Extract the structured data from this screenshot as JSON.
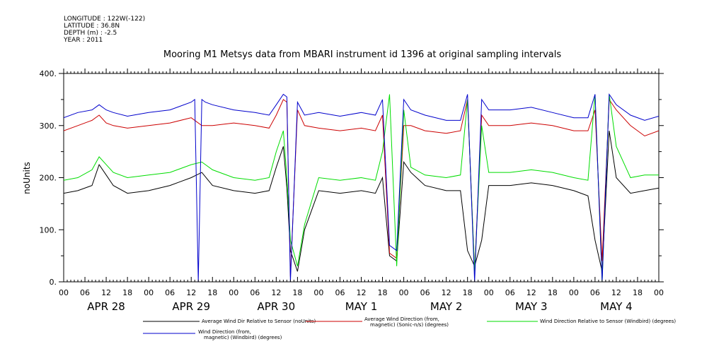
{
  "meta": {
    "lines": [
      "LONGITUDE : 122W(-122)",
      "LATITUDE : 36.8N",
      "DEPTH (m) : -2.5",
      "YEAR : 2011"
    ]
  },
  "chart_data": {
    "type": "line",
    "title": "Mooring M1 Metsys data from MBARI instrument id 1396 at original sampling intervals",
    "ylabel": "noUnits",
    "xlabel": "",
    "ylim": [
      0,
      400
    ],
    "y_ticks": [
      "0.",
      "100.",
      "200.",
      "300.",
      "400."
    ],
    "x_range_hours": [
      0,
      168
    ],
    "x_tick_labels": [
      "00",
      "06",
      "12",
      "18",
      "00",
      "06",
      "12",
      "18",
      "00",
      "06",
      "12",
      "18",
      "00",
      "06",
      "12",
      "18",
      "00",
      "06",
      "12",
      "18",
      "00",
      "06",
      "12",
      "18",
      "00",
      "06",
      "12",
      "18",
      "00"
    ],
    "day_labels": [
      "APR 28",
      "APR 29",
      "APR 30",
      "MAY  1",
      "MAY  2",
      "MAY  3",
      "MAY  4"
    ],
    "grid": false,
    "legend_position": "bottom",
    "series": [
      {
        "name": "Average Wind Dir Relative to Sensor (noUnits)",
        "color": "#000000",
        "x": [
          0,
          4,
          8,
          10,
          12,
          14,
          18,
          24,
          30,
          36,
          39,
          42,
          48,
          54,
          58,
          60,
          62,
          63,
          64,
          66,
          68,
          72,
          78,
          84,
          88,
          90,
          92,
          94,
          96,
          98,
          102,
          108,
          112,
          114,
          116,
          118,
          120,
          126,
          132,
          138,
          144,
          148,
          150,
          152,
          154,
          156,
          160,
          164,
          168
        ],
        "y": [
          170,
          175,
          185,
          225,
          205,
          185,
          170,
          175,
          185,
          200,
          210,
          185,
          175,
          170,
          175,
          220,
          260,
          180,
          60,
          20,
          100,
          175,
          170,
          175,
          170,
          200,
          50,
          40,
          230,
          210,
          185,
          175,
          175,
          60,
          30,
          80,
          185,
          185,
          190,
          185,
          175,
          165,
          80,
          20,
          290,
          200,
          170,
          175,
          180
        ]
      },
      {
        "name": "Average Wind Direction (from, magnetic) (Sonic-n/s) (degrees)",
        "color": "#cc0000",
        "x": [
          0,
          4,
          8,
          10,
          12,
          14,
          18,
          24,
          30,
          36,
          39,
          42,
          48,
          54,
          58,
          60,
          62,
          63,
          64,
          66,
          68,
          72,
          78,
          84,
          88,
          90,
          92,
          94,
          96,
          98,
          102,
          108,
          112,
          114,
          116,
          118,
          120,
          126,
          132,
          138,
          144,
          148,
          150,
          152,
          154,
          156,
          160,
          164,
          168
        ],
        "y": [
          290,
          300,
          310,
          320,
          305,
          300,
          295,
          300,
          305,
          315,
          300,
          300,
          305,
          300,
          295,
          320,
          350,
          345,
          10,
          330,
          300,
          295,
          290,
          295,
          290,
          320,
          55,
          45,
          300,
          300,
          290,
          285,
          290,
          350,
          20,
          320,
          300,
          300,
          305,
          300,
          290,
          290,
          330,
          40,
          350,
          330,
          300,
          280,
          290
        ]
      },
      {
        "name": "Wind Direction Relative to Sensor (Windbird) (degrees)",
        "color": "#00dd00",
        "x": [
          0,
          4,
          8,
          10,
          12,
          14,
          18,
          24,
          30,
          36,
          39,
          42,
          48,
          54,
          58,
          60,
          62,
          63,
          64,
          66,
          68,
          72,
          78,
          84,
          88,
          90,
          92,
          94,
          96,
          98,
          102,
          108,
          112,
          114,
          116,
          118,
          120,
          126,
          132,
          138,
          144,
          148,
          150,
          152,
          154,
          156,
          160,
          164,
          168
        ],
        "y": [
          195,
          200,
          215,
          240,
          225,
          210,
          200,
          205,
          210,
          225,
          230,
          215,
          200,
          195,
          200,
          250,
          290,
          200,
          80,
          30,
          110,
          200,
          195,
          200,
          195,
          250,
          360,
          30,
          330,
          220,
          205,
          200,
          205,
          350,
          20,
          300,
          210,
          210,
          215,
          210,
          200,
          195,
          360,
          0,
          360,
          260,
          200,
          205,
          205
        ]
      },
      {
        "name": "Wind Direction (from, magnetic) (Windbird) (degrees)",
        "color": "#0000cc",
        "x": [
          0,
          4,
          8,
          10,
          12,
          14,
          18,
          24,
          30,
          36,
          37,
          38,
          39,
          40,
          42,
          48,
          54,
          58,
          60,
          62,
          63,
          64,
          66,
          68,
          72,
          78,
          84,
          88,
          90,
          92,
          94,
          96,
          98,
          102,
          108,
          112,
          114,
          116,
          118,
          120,
          126,
          132,
          138,
          144,
          148,
          150,
          152,
          154,
          156,
          160,
          164,
          168
        ],
        "y": [
          315,
          325,
          330,
          340,
          330,
          325,
          318,
          325,
          330,
          345,
          350,
          0,
          350,
          345,
          340,
          330,
          325,
          320,
          340,
          360,
          355,
          0,
          345,
          320,
          325,
          318,
          325,
          320,
          350,
          70,
          60,
          350,
          330,
          320,
          310,
          310,
          360,
          0,
          350,
          330,
          330,
          335,
          325,
          315,
          315,
          360,
          0,
          360,
          340,
          320,
          310,
          318
        ]
      }
    ]
  }
}
